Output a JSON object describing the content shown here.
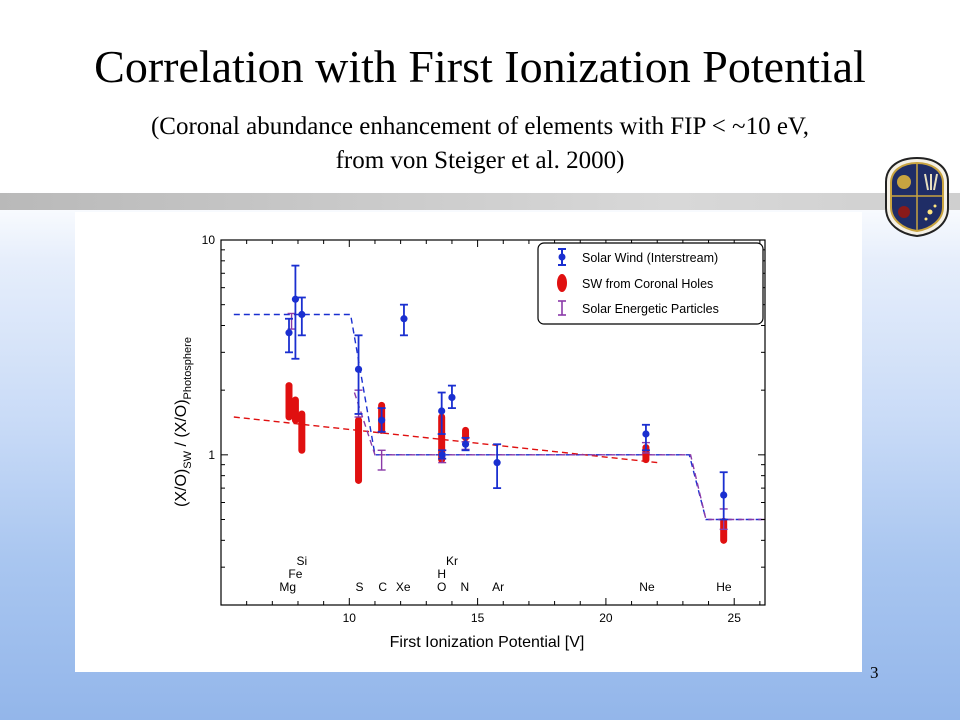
{
  "slide": {
    "title": "Correlation with First Ionization Potential",
    "subtitle_line1": "(Coronal abundance enhancement of elements with FIP < ~10 eV,",
    "subtitle_line2": "from von Steiger et al. 2000)",
    "page_number": "3"
  },
  "colors": {
    "solar_wind": "#1a2fd0",
    "coronal_holes": "#e01010",
    "sep": "#8a3aa8"
  },
  "chart_data": {
    "type": "scatter",
    "xlabel": "First Ionization Potential [V]",
    "ylabel_parts": [
      "(X/O)",
      "SW",
      " / (X/O)",
      "Photosphere"
    ],
    "xlim": [
      5,
      26.2
    ],
    "ylim": [
      0.2,
      10
    ],
    "y_scale": "log",
    "x_ticks": [
      10,
      15,
      20,
      25
    ],
    "y_tick_labels": [
      {
        "value": 10,
        "label": "10"
      },
      {
        "value": 1,
        "label": "1"
      }
    ],
    "legend_position": "top-right",
    "legend": [
      {
        "label": "Solar Wind (Interstream)",
        "marker": "circle-errorbar"
      },
      {
        "label": "SW from Coronal Holes",
        "marker": "ellipse"
      },
      {
        "label": "Solar Energetic Particles",
        "marker": "errorbar"
      }
    ],
    "element_labels": [
      {
        "text": "Mg",
        "x": 7.6,
        "row": 0
      },
      {
        "text": "Fe",
        "x": 7.9,
        "row": 1
      },
      {
        "text": "Si",
        "x": 8.15,
        "row": 2
      },
      {
        "text": "S",
        "x": 10.4,
        "row": 0
      },
      {
        "text": "C",
        "x": 11.3,
        "row": 0
      },
      {
        "text": "Xe",
        "x": 12.1,
        "row": 0
      },
      {
        "text": "O",
        "x": 13.6,
        "row": 0
      },
      {
        "text": "H",
        "x": 13.6,
        "row": 1
      },
      {
        "text": "Kr",
        "x": 14.0,
        "row": 2
      },
      {
        "text": "N",
        "x": 14.5,
        "row": 0
      },
      {
        "text": "Ar",
        "x": 15.8,
        "row": 0
      },
      {
        "text": "Ne",
        "x": 21.6,
        "row": 0
      },
      {
        "text": "He",
        "x": 24.6,
        "row": 0
      }
    ],
    "series": [
      {
        "name": "Solar Wind (Interstream)",
        "points": [
          {
            "x": 7.65,
            "y": 3.7,
            "lo": 3.0,
            "hi": 4.3
          },
          {
            "x": 7.9,
            "y": 5.3,
            "lo": 2.8,
            "hi": 7.6
          },
          {
            "x": 8.15,
            "y": 4.5,
            "lo": 3.6,
            "hi": 5.4
          },
          {
            "x": 10.36,
            "y": 2.5,
            "lo": 1.55,
            "hi": 3.6
          },
          {
            "x": 11.26,
            "y": 1.45,
            "lo": 1.28,
            "hi": 1.65
          },
          {
            "x": 12.13,
            "y": 4.3,
            "lo": 3.6,
            "hi": 5.0
          },
          {
            "x": 13.6,
            "y": 1.6,
            "lo": 1.25,
            "hi": 1.95
          },
          {
            "x": 13.62,
            "y": 1.0,
            "lo": 0.96,
            "hi": 1.05
          },
          {
            "x": 14.0,
            "y": 1.85,
            "lo": 1.65,
            "hi": 2.1
          },
          {
            "x": 14.53,
            "y": 1.12,
            "lo": 1.05,
            "hi": 1.2
          },
          {
            "x": 15.76,
            "y": 0.92,
            "lo": 0.7,
            "hi": 1.12
          },
          {
            "x": 21.56,
            "y": 1.25,
            "lo": 1.05,
            "hi": 1.38
          },
          {
            "x": 24.59,
            "y": 0.65,
            "lo": 0.5,
            "hi": 0.83
          }
        ]
      },
      {
        "name": "SW from Coronal Holes",
        "points": [
          {
            "x": 7.65,
            "lo": 1.5,
            "hi": 2.1
          },
          {
            "x": 7.9,
            "lo": 1.45,
            "hi": 1.8
          },
          {
            "x": 8.15,
            "lo": 1.05,
            "hi": 1.55
          },
          {
            "x": 10.36,
            "lo": 0.76,
            "hi": 1.45
          },
          {
            "x": 11.26,
            "lo": 1.3,
            "hi": 1.7
          },
          {
            "x": 13.6,
            "lo": 0.95,
            "hi": 1.5
          },
          {
            "x": 14.53,
            "lo": 1.2,
            "hi": 1.3
          },
          {
            "x": 21.56,
            "lo": 0.95,
            "hi": 1.08
          },
          {
            "x": 24.59,
            "lo": 0.4,
            "hi": 0.49
          }
        ]
      },
      {
        "name": "Solar Energetic Particles",
        "points": [
          {
            "x": 7.75,
            "y": 4.2,
            "lo": 3.85,
            "hi": 4.55
          },
          {
            "x": 10.36,
            "y": 1.75,
            "lo": 1.5,
            "hi": 2.0
          },
          {
            "x": 11.26,
            "y": 0.95,
            "lo": 0.85,
            "hi": 1.05
          },
          {
            "x": 13.62,
            "y": 0.98,
            "lo": 0.92,
            "hi": 1.05
          },
          {
            "x": 14.53,
            "y": 1.1,
            "lo": 1.06,
            "hi": 1.15
          },
          {
            "x": 21.56,
            "y": 1.08,
            "lo": 1.02,
            "hi": 1.14
          },
          {
            "x": 24.59,
            "y": 0.5,
            "lo": 0.45,
            "hi": 0.56
          }
        ]
      }
    ],
    "fit_lines": [
      {
        "name": "solar-wind-step",
        "color": "#1a2fd0",
        "points": [
          [
            5.5,
            4.5
          ],
          [
            10.05,
            4.5
          ],
          [
            11.0,
            1.0
          ],
          [
            23.25,
            1.0
          ],
          [
            23.9,
            0.5
          ],
          [
            26.2,
            0.5
          ]
        ]
      },
      {
        "name": "coronal-hole-trend",
        "color": "#e01010",
        "points": [
          [
            5.5,
            1.5
          ],
          [
            22.0,
            0.92
          ]
        ]
      },
      {
        "name": "sep-step",
        "color": "#8a3aa8",
        "points": [
          [
            10.2,
            1.95
          ],
          [
            11.0,
            1.0
          ],
          [
            23.3,
            1.0
          ],
          [
            23.9,
            0.5
          ],
          [
            26.2,
            0.5
          ]
        ]
      }
    ]
  }
}
